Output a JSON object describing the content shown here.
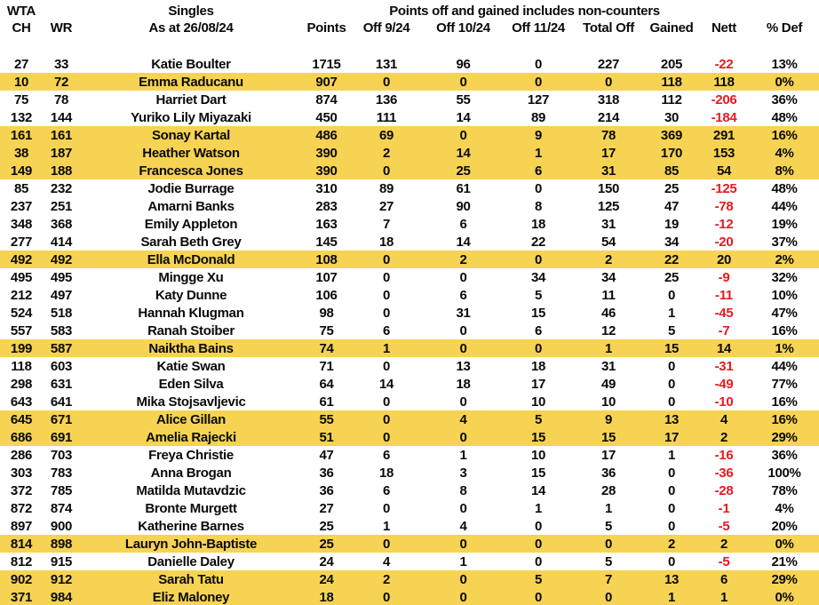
{
  "header": {
    "corner_top": "WTA",
    "ch_label": "CH",
    "wr_label": "WR",
    "singles_title": "Singles",
    "as_at": "As at 26/08/24",
    "points_label": "Points",
    "span_title": "Points off and gained includes non-counters",
    "off_9_24": "Off 9/24",
    "off_10_24": "Off 10/24",
    "off_11_24": "Off 11/24",
    "total_off": "Total Off",
    "gained": "Gained",
    "nett": "Nett",
    "pct_def": "% Def"
  },
  "colors": {
    "highlight_yellow": "#F6D352",
    "negative_red": "#E8191E",
    "text_black": "#0a0a0a",
    "background": "#ffffff"
  },
  "table": {
    "column_keys": [
      "ch",
      "wr",
      "name",
      "points",
      "off-9-24",
      "off-10-24",
      "off-11-24",
      "total-off",
      "gained",
      "nett",
      "pct-def"
    ],
    "rows": [
      {
        "highlighted": false,
        "cells": [
          "27",
          "33",
          "Katie Boulter",
          "1715",
          "131",
          "96",
          "0",
          "227",
          "205",
          "-22",
          "13%"
        ]
      },
      {
        "highlighted": true,
        "cells": [
          "10",
          "72",
          "Emma Raducanu",
          "907",
          "0",
          "0",
          "0",
          "0",
          "118",
          "118",
          "0%"
        ]
      },
      {
        "highlighted": false,
        "cells": [
          "75",
          "78",
          "Harriet Dart",
          "874",
          "136",
          "55",
          "127",
          "318",
          "112",
          "-206",
          "36%"
        ]
      },
      {
        "highlighted": false,
        "cells": [
          "132",
          "144",
          "Yuriko Lily Miyazaki",
          "450",
          "111",
          "14",
          "89",
          "214",
          "30",
          "-184",
          "48%"
        ]
      },
      {
        "highlighted": true,
        "cells": [
          "161",
          "161",
          "Sonay Kartal",
          "486",
          "69",
          "0",
          "9",
          "78",
          "369",
          "291",
          "16%"
        ]
      },
      {
        "highlighted": true,
        "cells": [
          "38",
          "187",
          "Heather Watson",
          "390",
          "2",
          "14",
          "1",
          "17",
          "170",
          "153",
          "4%"
        ]
      },
      {
        "highlighted": true,
        "cells": [
          "149",
          "188",
          "Francesca Jones",
          "390",
          "0",
          "25",
          "6",
          "31",
          "85",
          "54",
          "8%"
        ]
      },
      {
        "highlighted": false,
        "cells": [
          "85",
          "232",
          "Jodie Burrage",
          "310",
          "89",
          "61",
          "0",
          "150",
          "25",
          "-125",
          "48%"
        ]
      },
      {
        "highlighted": false,
        "cells": [
          "237",
          "251",
          "Amarni Banks",
          "283",
          "27",
          "90",
          "8",
          "125",
          "47",
          "-78",
          "44%"
        ]
      },
      {
        "highlighted": false,
        "cells": [
          "348",
          "368",
          "Emily Appleton",
          "163",
          "7",
          "6",
          "18",
          "31",
          "19",
          "-12",
          "19%"
        ]
      },
      {
        "highlighted": false,
        "cells": [
          "277",
          "414",
          "Sarah Beth Grey",
          "145",
          "18",
          "14",
          "22",
          "54",
          "34",
          "-20",
          "37%"
        ]
      },
      {
        "highlighted": true,
        "cells": [
          "492",
          "492",
          "Ella McDonald",
          "108",
          "0",
          "2",
          "0",
          "2",
          "22",
          "20",
          "2%"
        ]
      },
      {
        "highlighted": false,
        "cells": [
          "495",
          "495",
          "Mingge Xu",
          "107",
          "0",
          "0",
          "34",
          "34",
          "25",
          "-9",
          "32%"
        ]
      },
      {
        "highlighted": false,
        "cells": [
          "212",
          "497",
          "Katy Dunne",
          "106",
          "0",
          "6",
          "5",
          "11",
          "0",
          "-11",
          "10%"
        ]
      },
      {
        "highlighted": false,
        "cells": [
          "524",
          "518",
          "Hannah Klugman",
          "98",
          "0",
          "31",
          "15",
          "46",
          "1",
          "-45",
          "47%"
        ]
      },
      {
        "highlighted": false,
        "cells": [
          "557",
          "583",
          "Ranah Stoiber",
          "75",
          "6",
          "0",
          "6",
          "12",
          "5",
          "-7",
          "16%"
        ]
      },
      {
        "highlighted": true,
        "cells": [
          "199",
          "587",
          "Naiktha Bains",
          "74",
          "1",
          "0",
          "0",
          "1",
          "15",
          "14",
          "1%"
        ]
      },
      {
        "highlighted": false,
        "cells": [
          "118",
          "603",
          "Katie Swan",
          "71",
          "0",
          "13",
          "18",
          "31",
          "0",
          "-31",
          "44%"
        ]
      },
      {
        "highlighted": false,
        "cells": [
          "298",
          "631",
          "Eden Silva",
          "64",
          "14",
          "18",
          "17",
          "49",
          "0",
          "-49",
          "77%"
        ]
      },
      {
        "highlighted": false,
        "cells": [
          "643",
          "641",
          "Mika Stojsavljevic",
          "61",
          "0",
          "0",
          "10",
          "10",
          "0",
          "-10",
          "16%"
        ]
      },
      {
        "highlighted": true,
        "cells": [
          "645",
          "671",
          "Alice Gillan",
          "55",
          "0",
          "4",
          "5",
          "9",
          "13",
          "4",
          "16%"
        ]
      },
      {
        "highlighted": true,
        "cells": [
          "686",
          "691",
          "Amelia Rajecki",
          "51",
          "0",
          "0",
          "15",
          "15",
          "17",
          "2",
          "29%"
        ]
      },
      {
        "highlighted": false,
        "cells": [
          "286",
          "703",
          "Freya Christie",
          "47",
          "6",
          "1",
          "10",
          "17",
          "1",
          "-16",
          "36%"
        ]
      },
      {
        "highlighted": false,
        "cells": [
          "303",
          "783",
          "Anna Brogan",
          "36",
          "18",
          "3",
          "15",
          "36",
          "0",
          "-36",
          "100%"
        ]
      },
      {
        "highlighted": false,
        "cells": [
          "372",
          "785",
          "Matilda Mutavdzic",
          "36",
          "6",
          "8",
          "14",
          "28",
          "0",
          "-28",
          "78%"
        ]
      },
      {
        "highlighted": false,
        "cells": [
          "872",
          "874",
          "Bronte Murgett",
          "27",
          "0",
          "0",
          "1",
          "1",
          "0",
          "-1",
          "4%"
        ]
      },
      {
        "highlighted": false,
        "cells": [
          "897",
          "900",
          "Katherine Barnes",
          "25",
          "1",
          "4",
          "0",
          "5",
          "0",
          "-5",
          "20%"
        ]
      },
      {
        "highlighted": true,
        "cells": [
          "814",
          "898",
          "Lauryn John-Baptiste",
          "25",
          "0",
          "0",
          "0",
          "0",
          "2",
          "2",
          "0%"
        ]
      },
      {
        "highlighted": false,
        "cells": [
          "812",
          "915",
          "Danielle Daley",
          "24",
          "4",
          "1",
          "0",
          "5",
          "0",
          "-5",
          "21%"
        ]
      },
      {
        "highlighted": true,
        "cells": [
          "902",
          "912",
          "Sarah Tatu",
          "24",
          "2",
          "0",
          "5",
          "7",
          "13",
          "6",
          "29%"
        ]
      },
      {
        "highlighted": true,
        "cells": [
          "371",
          "984",
          "Eliz Maloney",
          "18",
          "0",
          "0",
          "0",
          "0",
          "1",
          "1",
          "0%"
        ]
      }
    ]
  }
}
